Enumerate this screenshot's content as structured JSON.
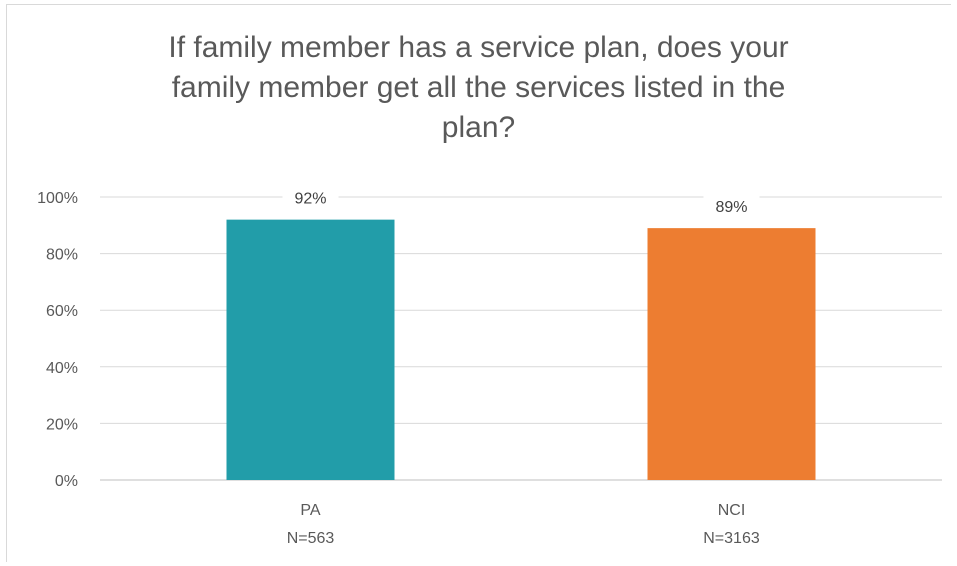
{
  "chart_data": {
    "type": "bar",
    "title": "If family member has a service plan, does your family member get all the services listed in the plan?",
    "categories": [
      "PA",
      "NCI"
    ],
    "category_sublabels": [
      "N=563",
      "N=3163"
    ],
    "values": [
      92,
      89
    ],
    "data_labels": [
      "92%",
      "89%"
    ],
    "bar_colors": [
      "#229da9",
      "#ed7d31"
    ],
    "ylim": [
      0,
      100
    ],
    "yticks": [
      0,
      20,
      40,
      60,
      80,
      100
    ],
    "ytick_labels": [
      "0%",
      "20%",
      "40%",
      "60%",
      "80%",
      "100%"
    ],
    "xlabel": "",
    "ylabel": "",
    "grid": true,
    "legend": "none"
  }
}
